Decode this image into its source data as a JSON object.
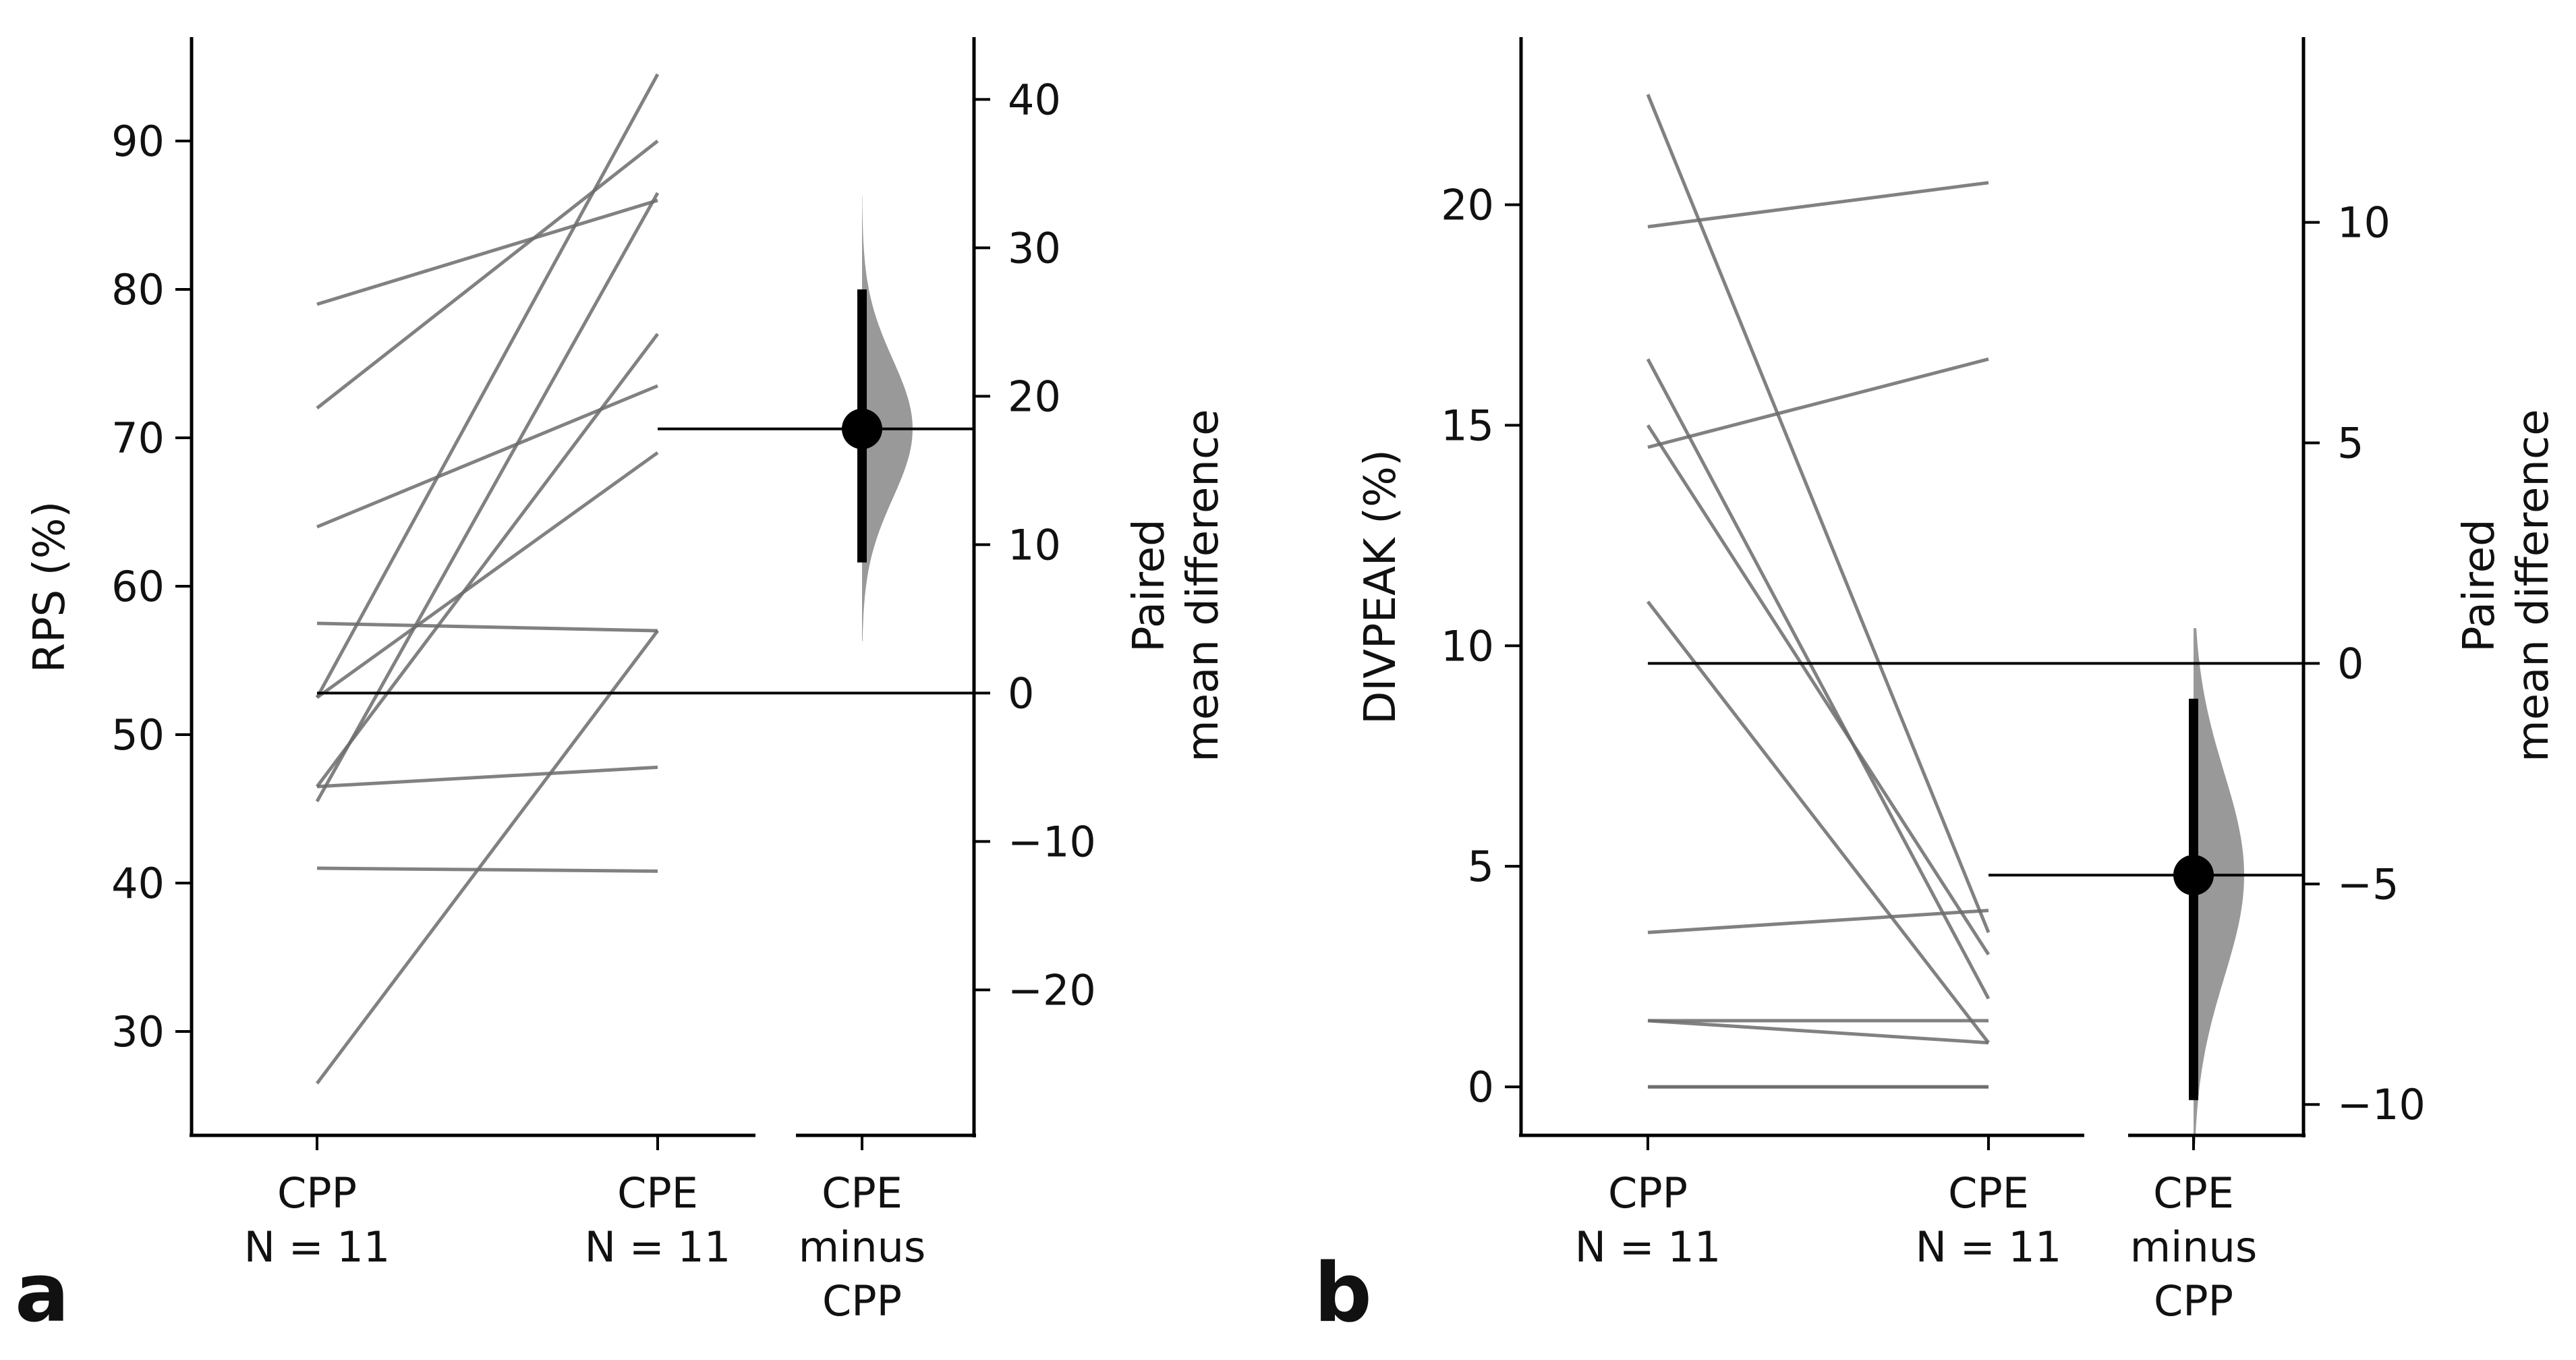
{
  "chart_data": [
    {
      "type": "paired-estimation",
      "panel_label": "a",
      "ylabel": "RPS (%)",
      "ylim": [
        23,
        97
      ],
      "yticks": [
        30,
        40,
        50,
        60,
        70,
        80,
        90
      ],
      "groups": [
        {
          "label": "CPP",
          "n_label": "N = 11"
        },
        {
          "label": "CPE",
          "n_label": "N = 11"
        }
      ],
      "delta_label": [
        "CPE",
        "minus",
        "CPP"
      ],
      "diff_ylabel": [
        "Paired",
        "mean difference"
      ],
      "diff_yticks": [
        -20,
        -10,
        0,
        10,
        20,
        30,
        40
      ],
      "paired": [
        [
          26.5,
          57.0
        ],
        [
          41.0,
          40.8
        ],
        [
          46.5,
          47.8
        ],
        [
          57.5,
          57.0
        ],
        [
          52.5,
          94.5
        ],
        [
          45.5,
          86.5
        ],
        [
          46.5,
          77.0
        ],
        [
          52.5,
          69.0
        ],
        [
          64.0,
          73.5
        ],
        [
          72.0,
          90.0
        ],
        [
          79.0,
          86.0
        ]
      ],
      "baseline": 52.8,
      "mean_diff": 17.8,
      "ci": [
        8.8,
        27.2
      ],
      "bootstrap_range": [
        3.5,
        33.5
      ]
    },
    {
      "type": "paired-estimation",
      "panel_label": "b",
      "ylabel": "DIVPEAK (%)",
      "ylim": [
        -1.1,
        23.8
      ],
      "yticks": [
        0,
        5,
        10,
        15,
        20
      ],
      "groups": [
        {
          "label": "CPP",
          "n_label": "N = 11"
        },
        {
          "label": "CPE",
          "n_label": "N = 11"
        }
      ],
      "delta_label": [
        "CPE",
        "minus",
        "CPP"
      ],
      "diff_ylabel": [
        "Paired",
        "mean difference"
      ],
      "diff_yticks": [
        -10,
        -5,
        0,
        5,
        10
      ],
      "paired": [
        [
          22.5,
          3.5
        ],
        [
          19.5,
          20.5
        ],
        [
          16.5,
          2.0
        ],
        [
          15.0,
          3.0
        ],
        [
          14.5,
          16.5
        ],
        [
          11.0,
          1.0
        ],
        [
          3.5,
          4.0
        ],
        [
          1.5,
          1.0
        ],
        [
          1.5,
          1.5
        ],
        [
          0.0,
          0.0
        ],
        [
          0.0,
          0.0
        ]
      ],
      "baseline": 9.6,
      "mean_diff": -4.8,
      "ci": [
        -9.9,
        -0.8
      ],
      "bootstrap_range": [
        -10.9,
        0.8
      ]
    }
  ]
}
